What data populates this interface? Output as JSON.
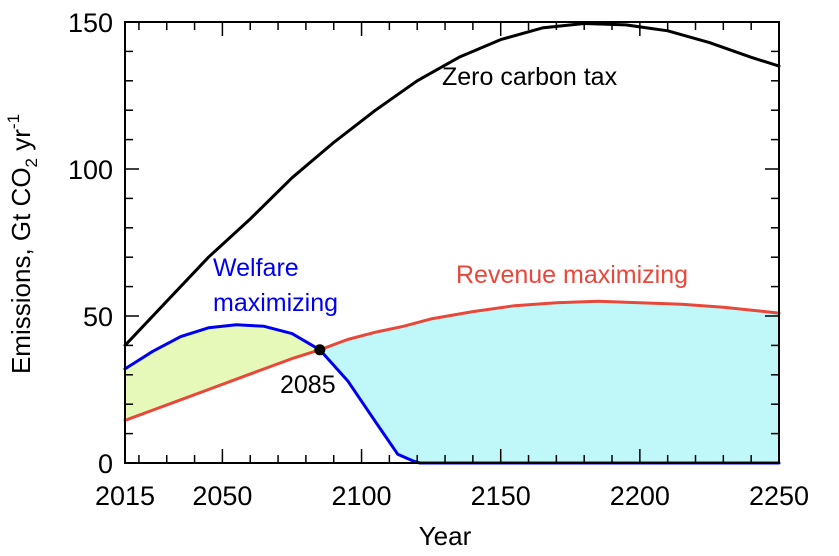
{
  "chart_data": {
    "type": "line",
    "title": "",
    "xlabel": "Year",
    "ylabel_main": "Emissions, Gt CO",
    "ylabel_sub": "2",
    "ylabel_unit": " yr",
    "ylabel_sup": "-1",
    "xlim": [
      2015,
      2250
    ],
    "ylim": [
      0,
      150
    ],
    "xticks": [
      2015,
      2050,
      2100,
      2150,
      2200,
      2250
    ],
    "xticks_minor_step": 10,
    "yticks": [
      0,
      50,
      100,
      150
    ],
    "yticks_minor_step": 10,
    "grid": false,
    "series": [
      {
        "name": "Zero carbon tax",
        "color": "#000000",
        "x": [
          2015,
          2030,
          2045,
          2060,
          2075,
          2090,
          2105,
          2120,
          2135,
          2150,
          2165,
          2180,
          2195,
          2210,
          2225,
          2240,
          2250
        ],
        "y": [
          40,
          55,
          70,
          83,
          97,
          109,
          120,
          130,
          138,
          144,
          148,
          149.5,
          149,
          147,
          143,
          138,
          135
        ]
      },
      {
        "name": "Welfare maximizing",
        "color": "#0000ee",
        "x": [
          2015,
          2025,
          2035,
          2045,
          2055,
          2065,
          2075,
          2085,
          2095,
          2105,
          2113,
          2119,
          2121,
          2150,
          2200,
          2250
        ],
        "y": [
          32,
          38,
          43,
          46,
          47,
          46.5,
          44,
          38.5,
          28,
          14,
          3,
          0.5,
          0,
          0,
          0,
          0
        ]
      },
      {
        "name": "Revenue maximizing",
        "color": "#e8473a",
        "x": [
          2015,
          2025,
          2035,
          2045,
          2055,
          2065,
          2075,
          2085,
          2095,
          2105,
          2115,
          2125,
          2140,
          2155,
          2170,
          2185,
          2200,
          2215,
          2230,
          2245,
          2250
        ],
        "y": [
          14.5,
          18,
          21.5,
          25,
          28.5,
          32,
          35.5,
          38.5,
          42,
          44.5,
          46.5,
          49,
          51.5,
          53.5,
          54.5,
          55,
          54.5,
          54,
          53,
          51.5,
          51
        ]
      }
    ],
    "crossing_point": {
      "x": 2085,
      "y": 38.5,
      "label": "2085"
    },
    "fills": [
      {
        "between": [
          "Welfare maximizing",
          "Revenue maximizing"
        ],
        "x_range": [
          2015,
          2085
        ],
        "color": "#e6f9b8"
      },
      {
        "between": [
          "Revenue maximizing",
          "Welfare maximizing"
        ],
        "x_range": [
          2085,
          2250
        ],
        "color": "#c0f8fa"
      }
    ],
    "annotations": {
      "zero_tax": "Zero carbon tax",
      "welfare_line1": "Welfare",
      "welfare_line2": "maximizing",
      "revenue": "Revenue maximizing"
    }
  }
}
